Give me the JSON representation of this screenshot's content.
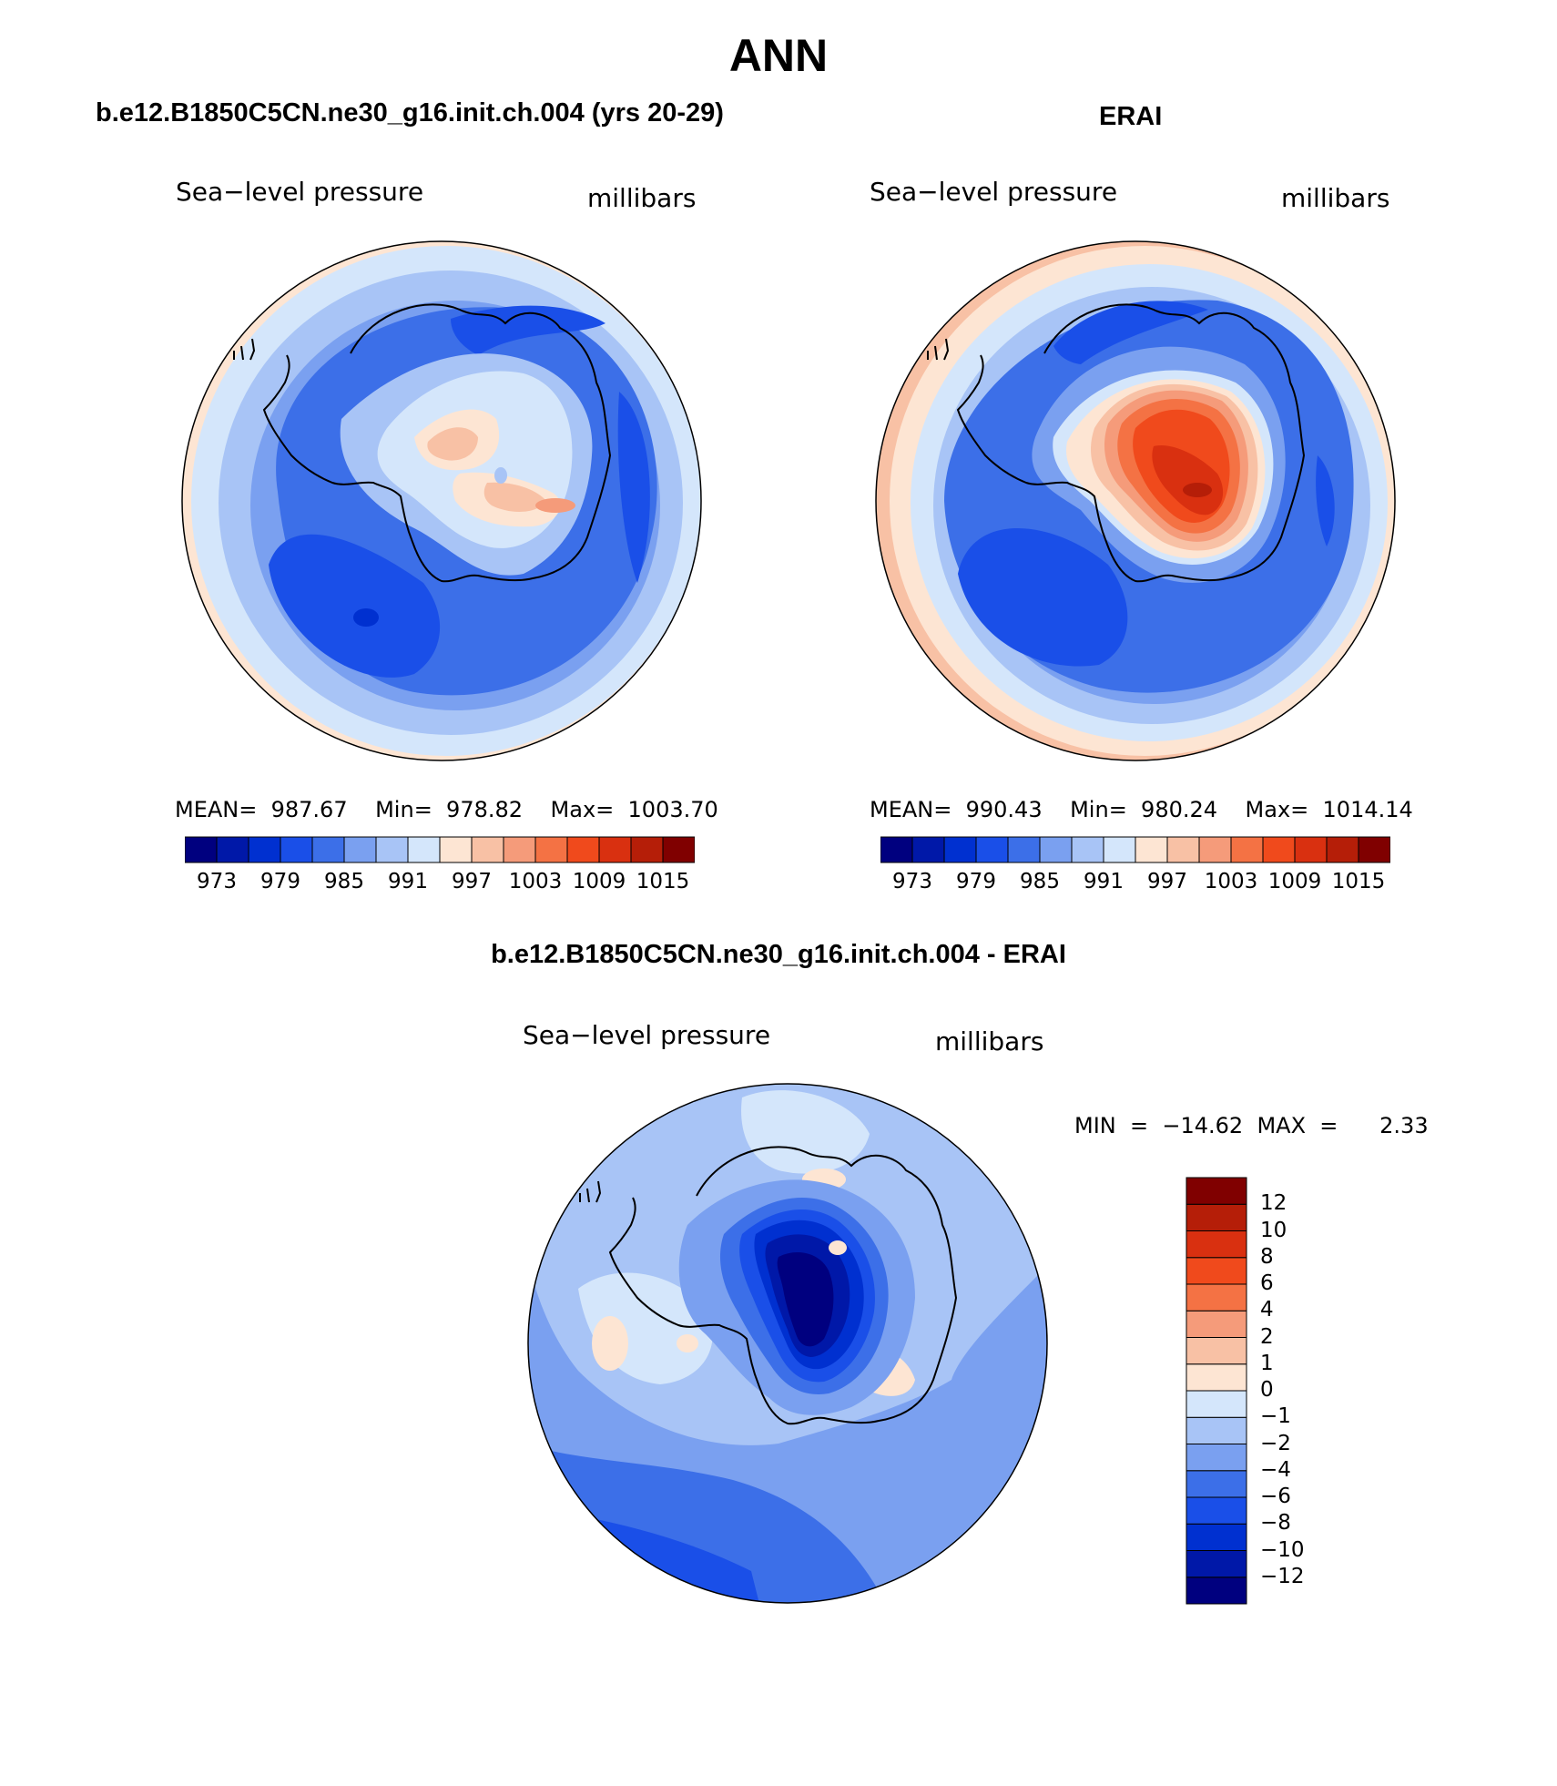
{
  "figure": {
    "title": "ANN"
  },
  "panels": [
    {
      "header": "b.e12.B1850C5CN.ne30_g16.init.ch.004 (yrs 20-29)",
      "left_label": "Sea−level pressure",
      "right_label": "millibars",
      "stats": {
        "mean": "987.67",
        "min": "978.82",
        "max": "1003.70"
      },
      "stats_text": "MEAN=  987.67    Min=  978.82    Max=  1003.70"
    },
    {
      "header": "ERAI",
      "left_label": "Sea−level pressure",
      "right_label": "millibars",
      "stats": {
        "mean": "990.43",
        "min": "980.24",
        "max": "1014.14"
      },
      "stats_text": "MEAN=  990.43    Min=  980.24    Max=  1014.14"
    },
    {
      "header": "b.e12.B1850C5CN.ne30_g16.init.ch.004 - ERAI",
      "left_label": "Sea−level pressure",
      "right_label": "millibars",
      "minmax_text": "MIN  =  −14.62  MAX  =      2.33",
      "stats": {
        "min": "−14.62",
        "max": "2.33"
      }
    }
  ],
  "colorbar_abs": {
    "colors": [
      "#00007f",
      "#0018a8",
      "#0030d0",
      "#1a4fe8",
      "#3c6fe8",
      "#7aa0f0",
      "#a8c4f6",
      "#d4e6fb",
      "#fde5d3",
      "#f8c1a5",
      "#f59b7a",
      "#f47244",
      "#f04a1c",
      "#d93010",
      "#b51e08",
      "#800000"
    ],
    "tick_labels": [
      "973",
      "979",
      "985",
      "991",
      "997",
      "1003",
      "1009",
      "1015"
    ]
  },
  "colorbar_diff": {
    "colors": [
      "#00007f",
      "#0018a8",
      "#0030d0",
      "#1a4fe8",
      "#3c6fe8",
      "#7aa0f0",
      "#a8c4f6",
      "#d4e6fb",
      "#fde5d3",
      "#f8c1a5",
      "#f59b7a",
      "#f47244",
      "#f04a1c",
      "#d93010",
      "#b51e08",
      "#800000"
    ],
    "tick_labels": [
      "12",
      "10",
      "8",
      "6",
      "4",
      "2",
      "1",
      "0",
      "−1",
      "−2",
      "−4",
      "−6",
      "−8",
      "−10",
      "−12"
    ]
  }
}
